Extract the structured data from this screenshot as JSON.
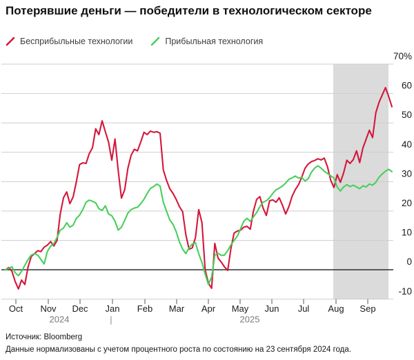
{
  "title": "Потерявшие деньги — победители в технологическом секторе",
  "footer": {
    "source": "Источник: Bloomberg",
    "note": "Данные нормализованы с учетом процентного роста по состоянию на 23 сентября 2024 года."
  },
  "chart_data": {
    "type": "line",
    "title": "Потерявшие деньги — победители в технологическом секторе",
    "x_axis": {
      "months": [
        "Oct",
        "Nov",
        "Dec",
        "Jan",
        "Feb",
        "Mar",
        "Apr",
        "May",
        "Jun",
        "Jul",
        "Aug",
        "Sep"
      ],
      "years": [
        "2024",
        "2025"
      ],
      "year_divider": "|"
    },
    "y_axis": {
      "ticks": [
        70,
        60,
        50,
        40,
        30,
        20,
        10,
        0,
        -10
      ],
      "unit": "%",
      "top_tick_label": "70%"
    },
    "ylim": [
      -13,
      72
    ],
    "grid": true,
    "zero_line": true,
    "legend_position": "top-left",
    "shaded_region": {
      "from_month": "Aug",
      "to": "end-of-data",
      "color": "#dbdbdb"
    },
    "normalized_as_of": "23 сентября 2024",
    "series": [
      {
        "name": "Бесприбыльные технологии",
        "color": "#d4163a",
        "values": [
          0,
          0.8,
          -0.5,
          -4,
          -6.5,
          -3.5,
          -5,
          1,
          4.5,
          5.5,
          6.5,
          6.2,
          7.7,
          8.4,
          9.6,
          8.1,
          10,
          19,
          24.5,
          26.5,
          22.5,
          24.8,
          30,
          35.8,
          36.4,
          36.2,
          39.5,
          41.5,
          48,
          46,
          50.7,
          47,
          43.5,
          37.3,
          44.5,
          33.8,
          24.4,
          27.2,
          34.5,
          39,
          41,
          40.5,
          43.5,
          46.8,
          46,
          47.2,
          46.8,
          47,
          46.5,
          34,
          30.5,
          27.6,
          26,
          24,
          21.5,
          19.8,
          12,
          7,
          7.5,
          11,
          20.5,
          16,
          0,
          -4.5,
          -6.3,
          9,
          4,
          2.6,
          1,
          -0.2,
          7.3,
          12.5,
          13.2,
          13.5,
          14.5,
          14.8,
          13.8,
          20,
          24,
          24.9,
          21,
          18.5,
          23.5,
          23.8,
          23,
          24.5,
          22,
          19,
          21.5,
          25,
          27.3,
          29,
          31.5,
          34.5,
          36,
          36.8,
          37.2,
          37.8,
          37.4,
          38,
          35,
          30.5,
          28,
          32.4,
          29.8,
          33,
          37.3,
          36.2,
          37.5,
          40.5,
          36.5,
          41.5,
          44.5,
          47.5,
          45,
          53.5,
          57,
          59.5,
          62,
          59,
          55.5
        ]
      },
      {
        "name": "Прибыльная технология",
        "color": "#48cf5a",
        "values": [
          0,
          0.5,
          1,
          -1,
          -2,
          -0.5,
          1.5,
          3.5,
          5,
          5.5,
          5,
          3.5,
          2,
          6.3,
          8,
          8.9,
          11,
          13.5,
          14.2,
          16,
          14.5,
          15.2,
          17.5,
          18.6,
          20.5,
          23,
          23.7,
          23.3,
          22.8,
          20.8,
          20.2,
          21.8,
          19,
          18.4,
          16.5,
          13.5,
          14.5,
          16.8,
          19.3,
          20.5,
          21,
          21.3,
          22.5,
          24,
          26,
          27.7,
          28.3,
          29.2,
          28.5,
          23,
          20,
          17,
          15.5,
          13,
          9.5,
          7,
          5.5,
          7.5,
          8.8,
          9.2,
          5.5,
          2.5,
          -1.4,
          -5,
          -2.5,
          4.9,
          5.6,
          4.9,
          5,
          6.5,
          8.5,
          10,
          11.5,
          14,
          16.5,
          17.5,
          16.5,
          18,
          19.5,
          21.5,
          23,
          23.5,
          24.5,
          26,
          27.2,
          27.8,
          28.5,
          29.5,
          30.8,
          31.3,
          31.9,
          31.2,
          31.5,
          30.2,
          31,
          33.2,
          34.6,
          35.4,
          34.6,
          33.5,
          32.8,
          32,
          31.2,
          28.2,
          26.8,
          28.2,
          29,
          28.3,
          28.8,
          28.2,
          27.6,
          28.6,
          28.2,
          29.2,
          28.8,
          29.8,
          31.5,
          32.6,
          33.6,
          34.2,
          33.4
        ]
      }
    ]
  }
}
